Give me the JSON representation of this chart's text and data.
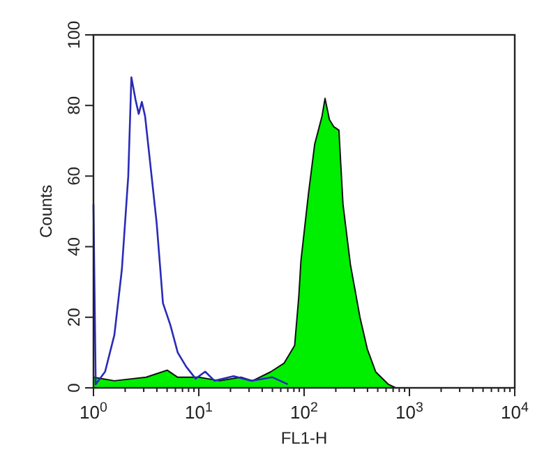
{
  "chart_data": {
    "type": "area",
    "xlabel": "FL1-H",
    "ylabel": "Counts",
    "log": "x",
    "grid": false,
    "xlim": [
      1,
      10000
    ],
    "xticks": [
      {
        "value": 1,
        "label": "10$^{0}$"
      },
      {
        "value": 10,
        "label": "10$^{1}$"
      },
      {
        "value": 100,
        "label": "10$^{2}$"
      },
      {
        "value": 1000,
        "label": "10$^{3}$"
      },
      {
        "value": 10000,
        "label": "10$^{4}$"
      }
    ],
    "ylim": [
      0,
      100
    ],
    "yticks": [
      0,
      20,
      40,
      60,
      80,
      100
    ],
    "series": [
      {
        "color": "#00ee00",
        "x": [
          1,
          1.58,
          3.16,
          5.01,
          6.31,
          10,
          15.8,
          25.1,
          32.4,
          47.9,
          64.6,
          81.3,
          89.1,
          93.3,
          110,
          126,
          148,
          158,
          174,
          191,
          214,
          234,
          275,
          339,
          398,
          479,
          631,
          741,
          10000
        ],
        "values": [
          3,
          2,
          3,
          5,
          3,
          3,
          2,
          3,
          2,
          4.5,
          7,
          12,
          26,
          36,
          55,
          69,
          77,
          82,
          76,
          74,
          73,
          52,
          35,
          20,
          11,
          4.5,
          1,
          0,
          0
        ]
      },
      {
        "type": "line",
        "color": "#2a2ab8",
        "x": [
          1,
          1.05,
          1.29,
          1.58,
          1.86,
          2.14,
          2.29,
          2.51,
          2.69,
          2.88,
          3.09,
          3.39,
          3.98,
          4.57,
          5.37,
          6.31,
          7.59,
          9.33,
          11.5,
          14.1,
          21.4,
          31.6,
          50,
          70
        ],
        "values": [
          52,
          1,
          4.6,
          15,
          33.5,
          60,
          88,
          81.6,
          77.6,
          81,
          77,
          66,
          46.7,
          24,
          17.8,
          10,
          6,
          2.6,
          4.6,
          2,
          3.3,
          2,
          3,
          1
        ]
      }
    ]
  }
}
